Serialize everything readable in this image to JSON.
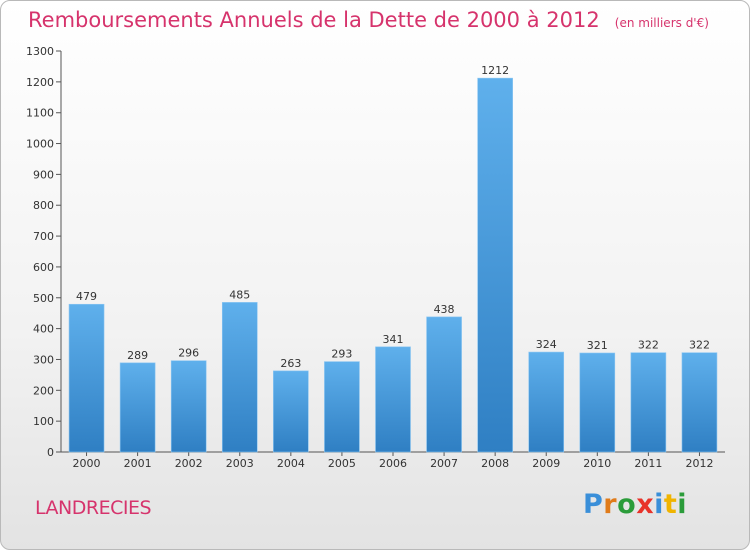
{
  "chart_data": {
    "type": "bar",
    "title": "Remboursements Annuels de la Dette de 2000 à 2012",
    "unit_label": "(en milliers d'€)",
    "categories": [
      "2000",
      "2001",
      "2002",
      "2003",
      "2004",
      "2005",
      "2006",
      "2007",
      "2008",
      "2009",
      "2010",
      "2011",
      "2012"
    ],
    "values": [
      479,
      289,
      296,
      485,
      263,
      293,
      341,
      438,
      1212,
      324,
      321,
      322,
      322
    ],
    "ylim": [
      0,
      1300
    ],
    "yticks": [
      0,
      100,
      200,
      300,
      400,
      500,
      600,
      700,
      800,
      900,
      1000,
      1100,
      1200,
      1300
    ],
    "xlabel": "",
    "ylabel": "",
    "grid": false,
    "bar_color": "#4b9fe0"
  },
  "footer": {
    "city": "LANDRECIES",
    "logo": {
      "p": "P",
      "r": "r",
      "o": "o",
      "x": "x",
      "i": "i",
      "t": "t",
      "i2": "i"
    }
  }
}
